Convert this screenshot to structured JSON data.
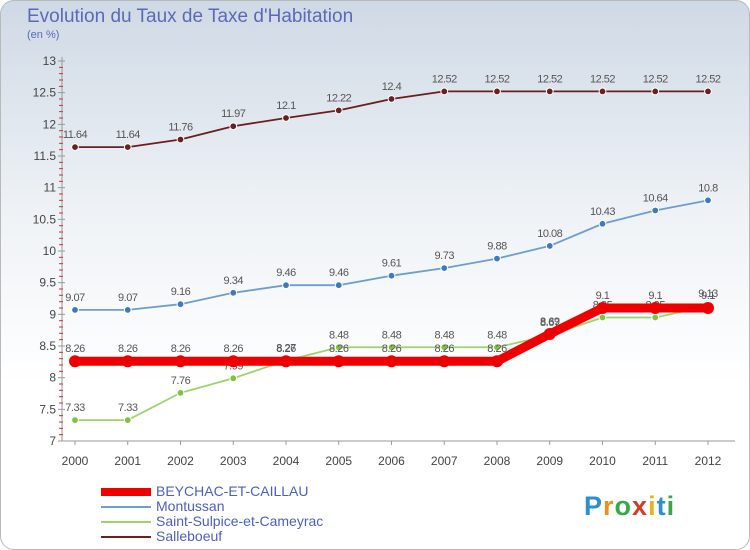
{
  "title": "Evolution du Taux de Taxe d'Habitation",
  "subtitle": "(en %)",
  "logo": [
    "P",
    "r",
    "o",
    "x",
    "i",
    "t",
    "i"
  ],
  "logo_colors": [
    "#2e8fd0",
    "#f28c1c",
    "#3aa84a",
    "#d43a2a",
    "#e9b21e",
    "#2e8fd0",
    "#3aa84a"
  ],
  "chart_data": {
    "type": "line",
    "title": "Evolution du Taux de Taxe d'Habitation",
    "ylabel": "(en %)",
    "xlabel": "",
    "categories": [
      "2000",
      "2001",
      "2002",
      "2003",
      "2004",
      "2005",
      "2006",
      "2007",
      "2008",
      "2009",
      "2010",
      "2011",
      "2012"
    ],
    "ylim": [
      7,
      13
    ],
    "yticks": [
      "7",
      "7.5",
      "8",
      "8.5",
      "9",
      "9.5",
      "10",
      "10.5",
      "11",
      "11.5",
      "12",
      "12.5",
      "13"
    ],
    "grid": false,
    "legend_position": "bottom-left",
    "series": [
      {
        "name": "Salleboeuf",
        "color": "#6b1f1f",
        "marker": "#6b1f1f",
        "values": [
          11.64,
          11.64,
          11.76,
          11.97,
          12.1,
          12.22,
          12.4,
          12.52,
          12.52,
          12.52,
          12.52,
          12.52,
          12.52
        ],
        "labels": [
          "11.64",
          "11.64",
          "11.76",
          "11.97",
          "12.1",
          "12.22",
          "12.4",
          "12.52",
          "12.52",
          "12.52",
          "12.52",
          "12.52",
          "12.52"
        ]
      },
      {
        "name": "Montussan",
        "color": "#6e9dd0",
        "marker": "#3d7bbf",
        "values": [
          9.07,
          9.07,
          9.16,
          9.34,
          9.46,
          9.46,
          9.61,
          9.73,
          9.88,
          10.08,
          10.43,
          10.64,
          10.8
        ],
        "labels": [
          "9.07",
          "9.07",
          "9.16",
          "9.34",
          "9.46",
          "9.46",
          "9.61",
          "9.73",
          "9.88",
          "10.08",
          "10.43",
          "10.64",
          "10.8"
        ]
      },
      {
        "name": "Saint-Sulpice-et-Cameyrac",
        "color": "#9ed46a",
        "marker": "#7ec240",
        "values": [
          7.33,
          7.33,
          7.76,
          7.99,
          8.27,
          8.48,
          8.48,
          8.48,
          8.48,
          8.67,
          8.95,
          8.95,
          9.13
        ],
        "labels": [
          "7.33",
          "7.33",
          "7.76",
          "7.99",
          "8.27",
          "8.48",
          "8.48",
          "8.48",
          "8.48",
          "8.67",
          "8.95",
          "8.95",
          "9.13"
        ]
      },
      {
        "name": "BEYCHAC-ET-CAILLAU",
        "color": "#ee0000",
        "marker": "#ee0000",
        "values": [
          8.26,
          8.26,
          8.26,
          8.26,
          8.26,
          8.26,
          8.26,
          8.26,
          8.26,
          8.69,
          9.1,
          9.1,
          9.1
        ],
        "labels": [
          "8.26",
          "8.26",
          "8.26",
          "8.26",
          "8.26",
          "8.26",
          "8.26",
          "8.26",
          "8.26",
          "8.69",
          "9.1",
          "9.1",
          "9.1"
        ]
      }
    ],
    "legend": [
      "BEYCHAC-ET-CAILLAU",
      "Montussan",
      "Saint-Sulpice-et-Cameyrac",
      "Salleboeuf"
    ]
  }
}
